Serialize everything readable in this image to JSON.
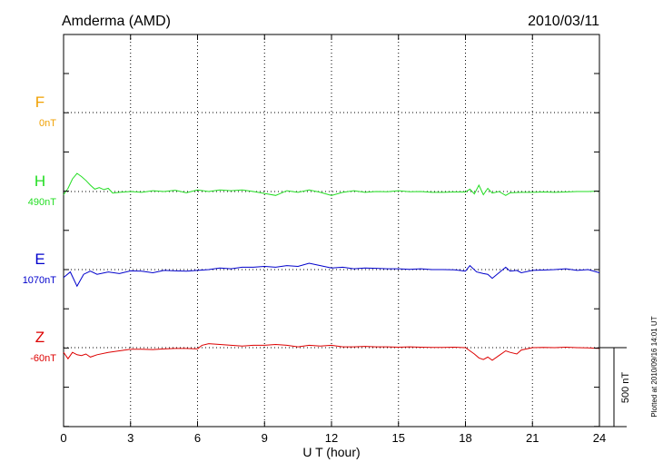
{
  "chart_data": {
    "type": "line",
    "title_left": "Amderma (AMD)",
    "title_right": "2010/03/11",
    "xlabel": "U T (hour)",
    "xlim": [
      0,
      24
    ],
    "xticks": [
      "0",
      "3",
      "6",
      "9",
      "12",
      "15",
      "18",
      "21",
      "24"
    ],
    "scale_bar_label": "500 nT",
    "scale_bar_nT": 500,
    "footer_note": "Plotted at 2010/09/16 14:01 UT",
    "panel_spacing_nT": 500,
    "series": [
      {
        "name": "F",
        "baseline": "0nT",
        "color": "#f0a000",
        "slot": 0,
        "points": []
      },
      {
        "name": "H",
        "baseline": "490nT",
        "color": "#22dd22",
        "slot": 1,
        "points": [
          [
            0,
            -20
          ],
          [
            0.2,
            20
          ],
          [
            0.4,
            80
          ],
          [
            0.6,
            115
          ],
          [
            0.8,
            95
          ],
          [
            1.0,
            70
          ],
          [
            1.2,
            40
          ],
          [
            1.4,
            15
          ],
          [
            1.6,
            25
          ],
          [
            1.8,
            12
          ],
          [
            2.0,
            20
          ],
          [
            2.2,
            -10
          ],
          [
            2.5,
            -5
          ],
          [
            3,
            0
          ],
          [
            3.5,
            -5
          ],
          [
            4,
            5
          ],
          [
            4.5,
            0
          ],
          [
            5,
            8
          ],
          [
            5.5,
            -8
          ],
          [
            6,
            10
          ],
          [
            6.5,
            0
          ],
          [
            7,
            10
          ],
          [
            7.5,
            5
          ],
          [
            8,
            10
          ],
          [
            8.5,
            0
          ],
          [
            9,
            -12
          ],
          [
            9.5,
            -25
          ],
          [
            10,
            5
          ],
          [
            10.5,
            -5
          ],
          [
            11,
            10
          ],
          [
            11.5,
            -5
          ],
          [
            12,
            -25
          ],
          [
            12.5,
            -5
          ],
          [
            13,
            5
          ],
          [
            13.5,
            -5
          ],
          [
            14,
            0
          ],
          [
            14.5,
            -2
          ],
          [
            15,
            5
          ],
          [
            15.5,
            -2
          ],
          [
            16,
            0
          ],
          [
            16.5,
            -5
          ],
          [
            17,
            -5
          ],
          [
            17.5,
            -3
          ],
          [
            18,
            -3
          ],
          [
            18.2,
            15
          ],
          [
            18.4,
            -15
          ],
          [
            18.6,
            40
          ],
          [
            18.8,
            -20
          ],
          [
            19,
            20
          ],
          [
            19.2,
            -10
          ],
          [
            19.5,
            0
          ],
          [
            19.8,
            -25
          ],
          [
            20,
            -8
          ],
          [
            20.5,
            -5
          ],
          [
            21,
            -5
          ],
          [
            21.5,
            -3
          ],
          [
            22,
            -5
          ],
          [
            22.5,
            -3
          ],
          [
            23,
            0
          ],
          [
            23.5,
            0
          ],
          [
            24,
            3
          ]
        ]
      },
      {
        "name": "E",
        "baseline": "1070nT",
        "color": "#0000cc",
        "slot": 2,
        "points": [
          [
            0,
            -50
          ],
          [
            0.3,
            -15
          ],
          [
            0.6,
            -105
          ],
          [
            0.9,
            -30
          ],
          [
            1.2,
            -10
          ],
          [
            1.5,
            -30
          ],
          [
            2,
            -15
          ],
          [
            2.5,
            -25
          ],
          [
            3,
            -8
          ],
          [
            3.5,
            -10
          ],
          [
            4,
            -20
          ],
          [
            4.5,
            -5
          ],
          [
            5,
            -8
          ],
          [
            5.5,
            -10
          ],
          [
            6,
            -5
          ],
          [
            6.5,
            0
          ],
          [
            7,
            10
          ],
          [
            7.5,
            5
          ],
          [
            8,
            15
          ],
          [
            8.5,
            15
          ],
          [
            9,
            20
          ],
          [
            9.5,
            15
          ],
          [
            10,
            25
          ],
          [
            10.5,
            20
          ],
          [
            11,
            40
          ],
          [
            11.5,
            25
          ],
          [
            12,
            10
          ],
          [
            12.5,
            15
          ],
          [
            13,
            5
          ],
          [
            13.5,
            10
          ],
          [
            14,
            8
          ],
          [
            14.5,
            5
          ],
          [
            15,
            5
          ],
          [
            15.5,
            2
          ],
          [
            16,
            5
          ],
          [
            16.5,
            0
          ],
          [
            17,
            0
          ],
          [
            17.5,
            -2
          ],
          [
            18,
            -10
          ],
          [
            18.2,
            25
          ],
          [
            18.5,
            -15
          ],
          [
            18.8,
            -25
          ],
          [
            19,
            -30
          ],
          [
            19.2,
            -55
          ],
          [
            19.5,
            -20
          ],
          [
            19.8,
            15
          ],
          [
            20,
            -10
          ],
          [
            20.3,
            -5
          ],
          [
            20.5,
            -20
          ],
          [
            21,
            -5
          ],
          [
            21.5,
            -3
          ],
          [
            22,
            0
          ],
          [
            22.5,
            5
          ],
          [
            23,
            -5
          ],
          [
            23.5,
            0
          ],
          [
            24,
            -20
          ]
        ]
      },
      {
        "name": "Z",
        "baseline": "-60nT",
        "color": "#dd0000",
        "slot": 3,
        "points": [
          [
            0,
            -30
          ],
          [
            0.2,
            -70
          ],
          [
            0.4,
            -30
          ],
          [
            0.6,
            -45
          ],
          [
            0.8,
            -50
          ],
          [
            1,
            -40
          ],
          [
            1.2,
            -60
          ],
          [
            1.5,
            -45
          ],
          [
            2,
            -30
          ],
          [
            2.5,
            -20
          ],
          [
            3,
            -10
          ],
          [
            3.5,
            -10
          ],
          [
            4,
            -12
          ],
          [
            4.5,
            -8
          ],
          [
            5,
            -5
          ],
          [
            5.5,
            -5
          ],
          [
            6,
            -8
          ],
          [
            6.2,
            15
          ],
          [
            6.5,
            25
          ],
          [
            7,
            20
          ],
          [
            7.5,
            15
          ],
          [
            8,
            10
          ],
          [
            8.5,
            15
          ],
          [
            9,
            15
          ],
          [
            9.5,
            20
          ],
          [
            10,
            15
          ],
          [
            10.5,
            5
          ],
          [
            11,
            15
          ],
          [
            11.5,
            10
          ],
          [
            12,
            15
          ],
          [
            12.5,
            5
          ],
          [
            13,
            5
          ],
          [
            13.5,
            8
          ],
          [
            14,
            5
          ],
          [
            14.5,
            5
          ],
          [
            15,
            3
          ],
          [
            15.5,
            5
          ],
          [
            16,
            3
          ],
          [
            16.5,
            2
          ],
          [
            17,
            2
          ],
          [
            17.5,
            3
          ],
          [
            18,
            0
          ],
          [
            18.2,
            -20
          ],
          [
            18.4,
            -40
          ],
          [
            18.6,
            -65
          ],
          [
            18.8,
            -75
          ],
          [
            19,
            -60
          ],
          [
            19.2,
            -80
          ],
          [
            19.5,
            -50
          ],
          [
            19.8,
            -20
          ],
          [
            20,
            -30
          ],
          [
            20.3,
            -40
          ],
          [
            20.5,
            -15
          ],
          [
            21,
            0
          ],
          [
            21.5,
            2
          ],
          [
            22,
            0
          ],
          [
            22.5,
            3
          ],
          [
            23,
            0
          ],
          [
            23.5,
            -2
          ],
          [
            24,
            -5
          ]
        ]
      }
    ]
  }
}
